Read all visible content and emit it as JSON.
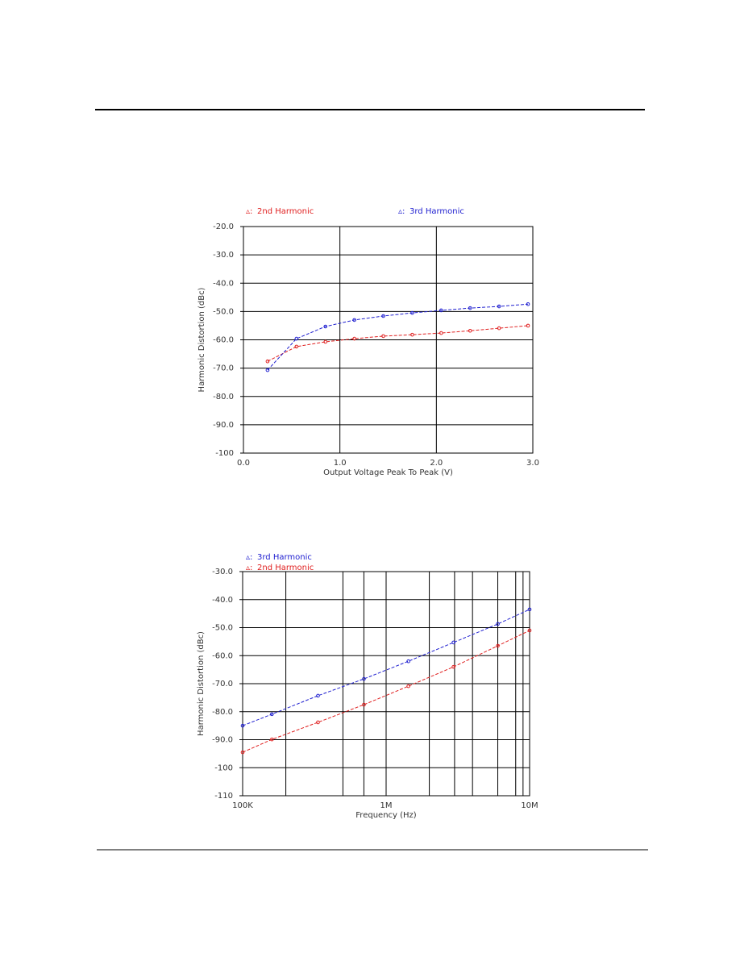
{
  "chart_data": [
    {
      "type": "line",
      "xlabel": "Output Voltage Peak To Peak (V)",
      "ylabel": "Harmonic Distortion (dBc)",
      "x": [
        0.25,
        0.55,
        0.85,
        1.15,
        1.45,
        1.75,
        2.05,
        2.35,
        2.65,
        2.95
      ],
      "series": [
        {
          "name": "2nd Harmonic",
          "color": "#e02020",
          "values": [
            -67.6,
            -62.4,
            -60.7,
            -59.6,
            -58.7,
            -58.2,
            -57.6,
            -56.8,
            -55.9,
            -55.0
          ]
        },
        {
          "name": "3rd Harmonic",
          "color": "#2020d0",
          "values": [
            -70.7,
            -59.6,
            -55.3,
            -53.0,
            -51.6,
            -50.5,
            -49.6,
            -48.8,
            -48.2,
            -47.4
          ]
        }
      ],
      "xlim": [
        0,
        3
      ],
      "xticks": [
        {
          "value": 0,
          "label": "0.0"
        },
        {
          "value": 1,
          "label": "1.0"
        },
        {
          "value": 2,
          "label": "2.0"
        },
        {
          "value": 3,
          "label": "3.0"
        }
      ],
      "ylim": [
        -100,
        -20
      ],
      "yticks": [
        {
          "value": -20,
          "label": "-20.0"
        },
        {
          "value": -30,
          "label": "-30.0"
        },
        {
          "value": -40,
          "label": "-40.0"
        },
        {
          "value": -50,
          "label": "-50.0"
        },
        {
          "value": -60,
          "label": "-60.0"
        },
        {
          "value": -70,
          "label": "-70.0"
        },
        {
          "value": -80,
          "label": "-80.0"
        },
        {
          "value": -90,
          "label": "-90.0"
        },
        -100
      ],
      "grid": true
    },
    {
      "type": "line",
      "xlabel": "Frequency (Hz)",
      "ylabel": "Harmonic Distortion (dBc)",
      "xlog": true,
      "x": [
        100000,
        160000,
        335000,
        700000,
        1430000,
        2950000,
        6000000,
        10000000
      ],
      "series": [
        {
          "name": "3rd Harmonic",
          "color": "#2020d0",
          "values": [
            -85.0,
            -80.9,
            -74.3,
            -68.3,
            -62.0,
            -55.3,
            -48.7,
            -43.5
          ]
        },
        {
          "name": "2nd Harmonic",
          "color": "#e02020",
          "values": [
            -94.5,
            -89.9,
            -83.8,
            -77.5,
            -70.9,
            -64.0,
            -56.5,
            -51.0
          ]
        }
      ],
      "xlim": [
        100000,
        10000000
      ],
      "xticks": [
        {
          "value": 100000,
          "label": "100K"
        },
        {
          "value": 1000000,
          "label": "1M"
        },
        {
          "value": 10000000,
          "label": "10M"
        }
      ],
      "xgrid": [
        200000,
        500000,
        700000,
        2000000,
        3000000,
        4000000,
        6000000,
        8000000,
        9000000
      ],
      "ylim": [
        -110,
        -30
      ],
      "yticks": [
        {
          "value": -30,
          "label": "-30.0"
        },
        {
          "value": -40,
          "label": "-40.0"
        },
        {
          "value": -50,
          "label": "-50.0"
        },
        {
          "value": -60,
          "label": "-60.0"
        },
        {
          "value": -70,
          "label": "-70.0"
        },
        {
          "value": -80,
          "label": "-80.0"
        },
        {
          "value": -90,
          "label": "-90.0"
        },
        -100,
        -110
      ],
      "grid": true
    }
  ]
}
